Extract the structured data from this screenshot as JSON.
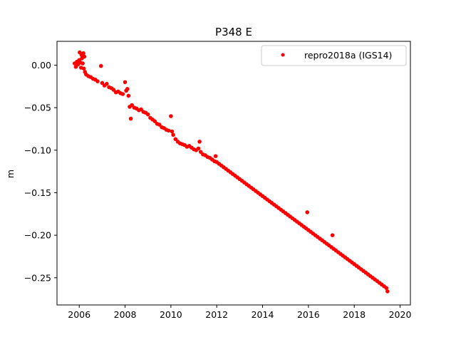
{
  "chart_data": {
    "type": "scatter",
    "title": "P348 E",
    "xlabel": "",
    "ylabel": "m",
    "xlim": [
      2005.03,
      2020.45
    ],
    "ylim": [
      -0.282,
      0.028
    ],
    "xticks": [
      2006,
      2008,
      2010,
      2012,
      2014,
      2016,
      2018,
      2020
    ],
    "xtick_labels": [
      "2006",
      "2008",
      "2010",
      "2012",
      "2014",
      "2016",
      "2018",
      "2020"
    ],
    "yticks": [
      0.0,
      -0.05,
      -0.1,
      -0.15,
      -0.2,
      -0.25
    ],
    "ytick_labels": [
      "0.00",
      "−0.05",
      "−0.10",
      "−0.15",
      "−0.20",
      "−0.25"
    ],
    "legend_position": "top-right",
    "grid": false,
    "series": [
      {
        "name": "repro2018a (IGS14)",
        "color": "#ff0000",
        "marker": "circle",
        "points": [
          [
            2005.8,
            0.002
          ],
          [
            2005.85,
            -0.002
          ],
          [
            2005.9,
            0.004
          ],
          [
            2005.95,
            0.001
          ],
          [
            2006.0,
            0.006
          ],
          [
            2006.02,
            0.015
          ],
          [
            2006.05,
            0.003
          ],
          [
            2006.08,
            -0.003
          ],
          [
            2006.1,
            0.012
          ],
          [
            2006.12,
            0.008
          ],
          [
            2006.15,
            0.002
          ],
          [
            2006.18,
            0.014
          ],
          [
            2006.2,
            -0.004
          ],
          [
            2006.22,
            0.01
          ],
          [
            2006.25,
            -0.008
          ],
          [
            2006.3,
            -0.011
          ],
          [
            2006.4,
            -0.013
          ],
          [
            2006.5,
            -0.014
          ],
          [
            2006.6,
            -0.016
          ],
          [
            2006.7,
            -0.017
          ],
          [
            2006.8,
            -0.019
          ],
          [
            2006.95,
            -0.001
          ],
          [
            2007.0,
            -0.021
          ],
          [
            2007.1,
            -0.024
          ],
          [
            2007.2,
            -0.022
          ],
          [
            2007.3,
            -0.026
          ],
          [
            2007.4,
            -0.027
          ],
          [
            2007.5,
            -0.029
          ],
          [
            2007.6,
            -0.032
          ],
          [
            2007.7,
            -0.031
          ],
          [
            2007.8,
            -0.033
          ],
          [
            2007.9,
            -0.034
          ],
          [
            2008.0,
            -0.02
          ],
          [
            2008.05,
            -0.03
          ],
          [
            2008.1,
            -0.028
          ],
          [
            2008.15,
            -0.036
          ],
          [
            2008.2,
            -0.049
          ],
          [
            2008.25,
            -0.063
          ],
          [
            2008.3,
            -0.047
          ],
          [
            2008.4,
            -0.05
          ],
          [
            2008.5,
            -0.051
          ],
          [
            2008.6,
            -0.053
          ],
          [
            2008.7,
            -0.052
          ],
          [
            2008.8,
            -0.055
          ],
          [
            2008.9,
            -0.056
          ],
          [
            2009.0,
            -0.058
          ],
          [
            2009.1,
            -0.062
          ],
          [
            2009.2,
            -0.064
          ],
          [
            2009.3,
            -0.066
          ],
          [
            2009.4,
            -0.069
          ],
          [
            2009.5,
            -0.07
          ],
          [
            2009.6,
            -0.073
          ],
          [
            2009.7,
            -0.074
          ],
          [
            2009.8,
            -0.076
          ],
          [
            2009.9,
            -0.077
          ],
          [
            2010.0,
            -0.06
          ],
          [
            2010.05,
            -0.078
          ],
          [
            2010.1,
            -0.082
          ],
          [
            2010.2,
            -0.087
          ],
          [
            2010.3,
            -0.09
          ],
          [
            2010.4,
            -0.092
          ],
          [
            2010.5,
            -0.093
          ],
          [
            2010.6,
            -0.094
          ],
          [
            2010.7,
            -0.096
          ],
          [
            2010.8,
            -0.095
          ],
          [
            2010.9,
            -0.097
          ],
          [
            2011.0,
            -0.099
          ],
          [
            2011.1,
            -0.1
          ],
          [
            2011.2,
            -0.098
          ],
          [
            2011.25,
            -0.09
          ],
          [
            2011.3,
            -0.102
          ],
          [
            2011.4,
            -0.105
          ],
          [
            2011.5,
            -0.106
          ],
          [
            2011.6,
            -0.108
          ],
          [
            2011.7,
            -0.109
          ],
          [
            2011.8,
            -0.111
          ],
          [
            2011.9,
            -0.113
          ],
          [
            2011.95,
            -0.107
          ],
          [
            2012.0,
            -0.114
          ],
          [
            2012.1,
            -0.116
          ],
          [
            2012.2,
            -0.118
          ],
          [
            2012.3,
            -0.12
          ],
          [
            2012.4,
            -0.122
          ],
          [
            2012.5,
            -0.124
          ],
          [
            2012.6,
            -0.126
          ],
          [
            2012.7,
            -0.128
          ],
          [
            2012.8,
            -0.13
          ],
          [
            2012.9,
            -0.132
          ],
          [
            2013.0,
            -0.134
          ],
          [
            2013.1,
            -0.136
          ],
          [
            2013.2,
            -0.138
          ],
          [
            2013.3,
            -0.14
          ],
          [
            2013.4,
            -0.142
          ],
          [
            2013.5,
            -0.144
          ],
          [
            2013.6,
            -0.146
          ],
          [
            2013.7,
            -0.148
          ],
          [
            2013.8,
            -0.15
          ],
          [
            2013.9,
            -0.152
          ],
          [
            2014.0,
            -0.154
          ],
          [
            2014.1,
            -0.156
          ],
          [
            2014.2,
            -0.158
          ],
          [
            2014.3,
            -0.16
          ],
          [
            2014.4,
            -0.162
          ],
          [
            2014.5,
            -0.164
          ],
          [
            2014.6,
            -0.166
          ],
          [
            2014.7,
            -0.168
          ],
          [
            2014.8,
            -0.17
          ],
          [
            2014.9,
            -0.172
          ],
          [
            2015.0,
            -0.174
          ],
          [
            2015.1,
            -0.176
          ],
          [
            2015.2,
            -0.178
          ],
          [
            2015.3,
            -0.18
          ],
          [
            2015.4,
            -0.182
          ],
          [
            2015.5,
            -0.184
          ],
          [
            2015.6,
            -0.186
          ],
          [
            2015.7,
            -0.188
          ],
          [
            2015.8,
            -0.19
          ],
          [
            2015.9,
            -0.192
          ],
          [
            2015.95,
            -0.173
          ],
          [
            2016.0,
            -0.194
          ],
          [
            2016.1,
            -0.196
          ],
          [
            2016.2,
            -0.198
          ],
          [
            2016.3,
            -0.2
          ],
          [
            2016.4,
            -0.202
          ],
          [
            2016.5,
            -0.204
          ],
          [
            2016.6,
            -0.206
          ],
          [
            2016.7,
            -0.208
          ],
          [
            2016.8,
            -0.21
          ],
          [
            2016.9,
            -0.212
          ],
          [
            2017.0,
            -0.214
          ],
          [
            2017.05,
            -0.2
          ],
          [
            2017.1,
            -0.216
          ],
          [
            2017.2,
            -0.218
          ],
          [
            2017.3,
            -0.22
          ],
          [
            2017.4,
            -0.222
          ],
          [
            2017.5,
            -0.224
          ],
          [
            2017.6,
            -0.226
          ],
          [
            2017.7,
            -0.228
          ],
          [
            2017.8,
            -0.23
          ],
          [
            2017.9,
            -0.232
          ],
          [
            2018.0,
            -0.234
          ],
          [
            2018.1,
            -0.236
          ],
          [
            2018.2,
            -0.238
          ],
          [
            2018.3,
            -0.24
          ],
          [
            2018.4,
            -0.242
          ],
          [
            2018.5,
            -0.244
          ],
          [
            2018.6,
            -0.246
          ],
          [
            2018.7,
            -0.248
          ],
          [
            2018.8,
            -0.25
          ],
          [
            2018.9,
            -0.252
          ],
          [
            2019.0,
            -0.254
          ],
          [
            2019.1,
            -0.256
          ],
          [
            2019.2,
            -0.258
          ],
          [
            2019.3,
            -0.26
          ],
          [
            2019.4,
            -0.262
          ],
          [
            2019.45,
            -0.266
          ]
        ]
      }
    ]
  }
}
